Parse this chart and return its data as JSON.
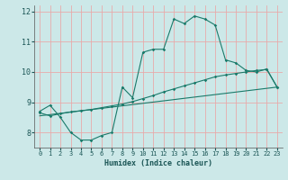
{
  "title": "",
  "xlabel": "Humidex (Indice chaleur)",
  "xlim": [
    -0.5,
    23.5
  ],
  "ylim": [
    7.5,
    12.2
  ],
  "yticks": [
    8,
    9,
    10,
    11,
    12
  ],
  "xticks": [
    0,
    1,
    2,
    3,
    4,
    5,
    6,
    7,
    8,
    9,
    10,
    11,
    12,
    13,
    14,
    15,
    16,
    17,
    18,
    19,
    20,
    21,
    22,
    23
  ],
  "bg_color": "#cce8e8",
  "grid_color": "#e8aaaa",
  "line_color": "#1a7a6a",
  "line1_x": [
    0,
    1,
    2,
    3,
    4,
    5,
    6,
    7,
    8,
    9,
    10,
    11,
    12,
    13,
    14,
    15,
    16,
    17,
    18,
    19,
    20,
    21,
    22,
    23
  ],
  "line1_y": [
    8.7,
    8.9,
    8.5,
    8.0,
    7.75,
    7.75,
    7.9,
    8.0,
    9.5,
    9.15,
    10.65,
    10.75,
    10.75,
    11.75,
    11.6,
    11.85,
    11.75,
    11.55,
    10.4,
    10.3,
    10.05,
    10.0,
    10.1,
    9.5
  ],
  "line2_x": [
    0,
    1,
    2,
    3,
    4,
    5,
    6,
    7,
    8,
    9,
    10,
    11,
    12,
    13,
    14,
    15,
    16,
    17,
    18,
    19,
    20,
    21,
    22,
    23
  ],
  "line2_y": [
    8.65,
    8.55,
    8.62,
    8.68,
    8.72,
    8.76,
    8.82,
    8.88,
    8.94,
    9.02,
    9.12,
    9.22,
    9.34,
    9.44,
    9.54,
    9.64,
    9.74,
    9.84,
    9.9,
    9.95,
    10.0,
    10.05,
    10.08,
    9.5
  ],
  "line3_x": [
    0,
    23
  ],
  "line3_y": [
    8.55,
    9.5
  ]
}
